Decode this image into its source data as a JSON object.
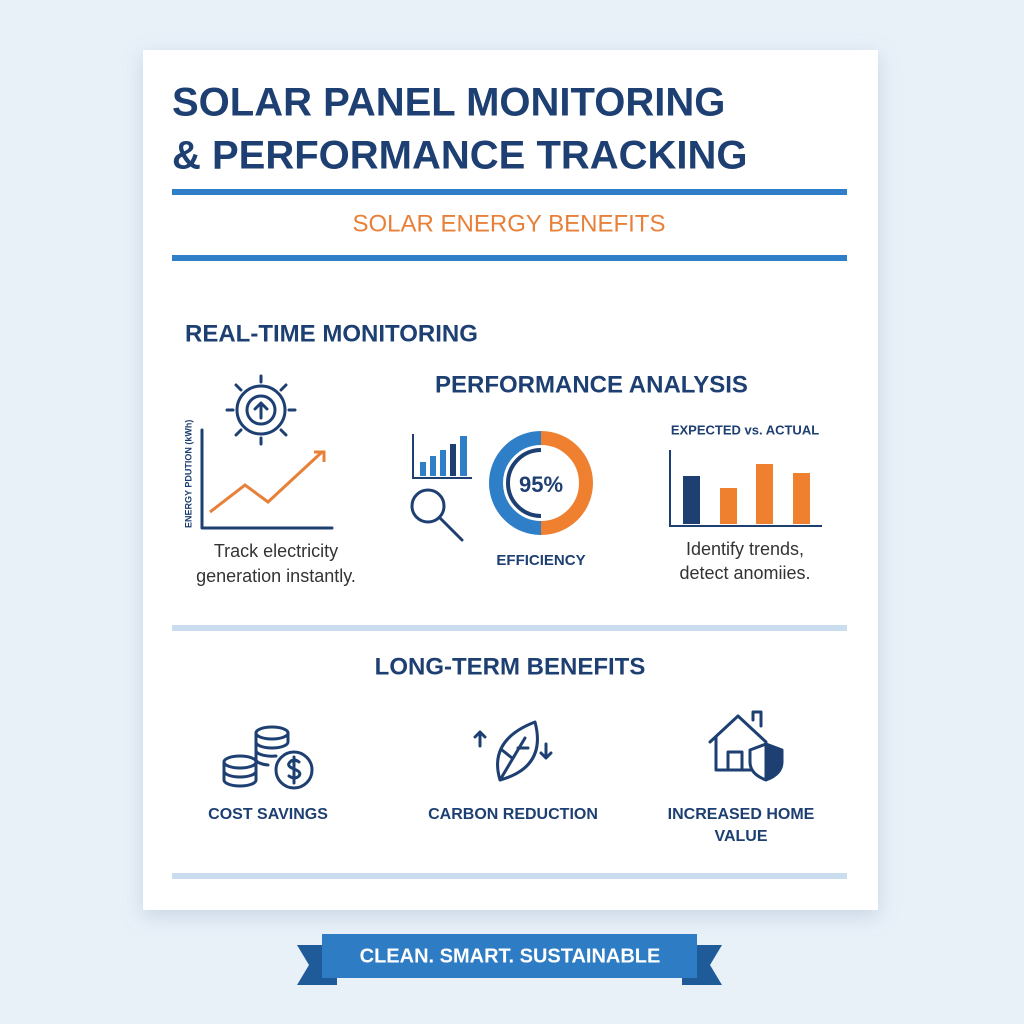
{
  "header": {
    "title_lines": [
      "SOLAR PANEL MONITORING",
      "& PERFORMANCE TRACKING"
    ],
    "subtitle": "SOLAR ENERGY BENEFITS"
  },
  "monitoring": {
    "heading": "REAL-TIME MONITORING",
    "axis_label": "ENERGY PDUTION (kWh)",
    "caption_lines": [
      "Track electricity",
      "generation instantly."
    ]
  },
  "analysis": {
    "heading": "PERFORMANCE ANALYSIS",
    "efficiency_value": "95%",
    "efficiency_label": "EFFICIENCY",
    "comparison_title": "EXPECTED vs. ACTUAL",
    "caption_lines": [
      "Identify trends,",
      "detect anomiies."
    ]
  },
  "benefits": {
    "heading": "LONG-TERM BENEFITS",
    "items": [
      {
        "label_lines": [
          "COST SAVINGS"
        ]
      },
      {
        "label_lines": [
          "CARBON REDUCTION"
        ]
      },
      {
        "label_lines": [
          "INCREASED HOME",
          "VALUE"
        ]
      }
    ]
  },
  "banner": "CLEAN. SMART. SUSTAINABLE"
}
